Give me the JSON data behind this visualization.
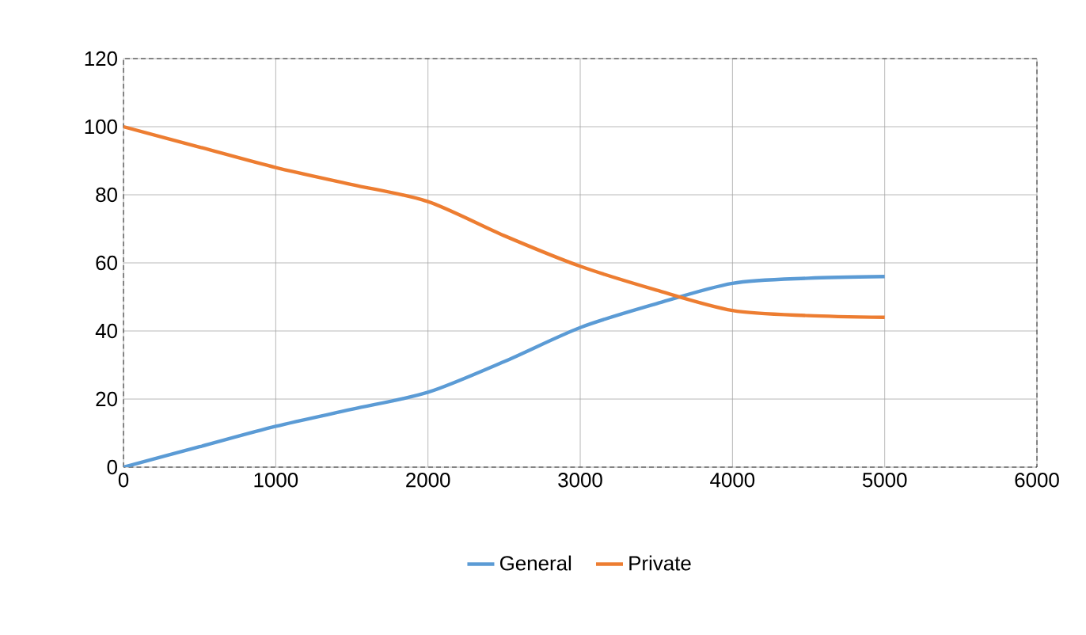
{
  "chart_data": {
    "type": "line",
    "x": [
      0,
      500,
      1000,
      1500,
      2000,
      2500,
      3000,
      3500,
      4000,
      4500,
      5000
    ],
    "series": [
      {
        "name": "General",
        "color": "#5b9bd5",
        "values": [
          0,
          6,
          12,
          17,
          22,
          31,
          41,
          48,
          54,
          55.5,
          56
        ]
      },
      {
        "name": "Private",
        "color": "#ed7d31",
        "values": [
          100,
          94,
          88,
          83,
          78,
          68,
          59,
          52,
          46,
          44.5,
          44
        ]
      }
    ],
    "xlim": [
      0,
      6000
    ],
    "xticks": [
      0,
      1000,
      2000,
      3000,
      4000,
      5000,
      6000
    ],
    "ylim": [
      0,
      120
    ],
    "yticks": [
      0,
      20,
      40,
      60,
      80,
      100,
      120
    ],
    "grid": true,
    "legend": "bottom",
    "marker": "none",
    "line_style": "solid"
  }
}
